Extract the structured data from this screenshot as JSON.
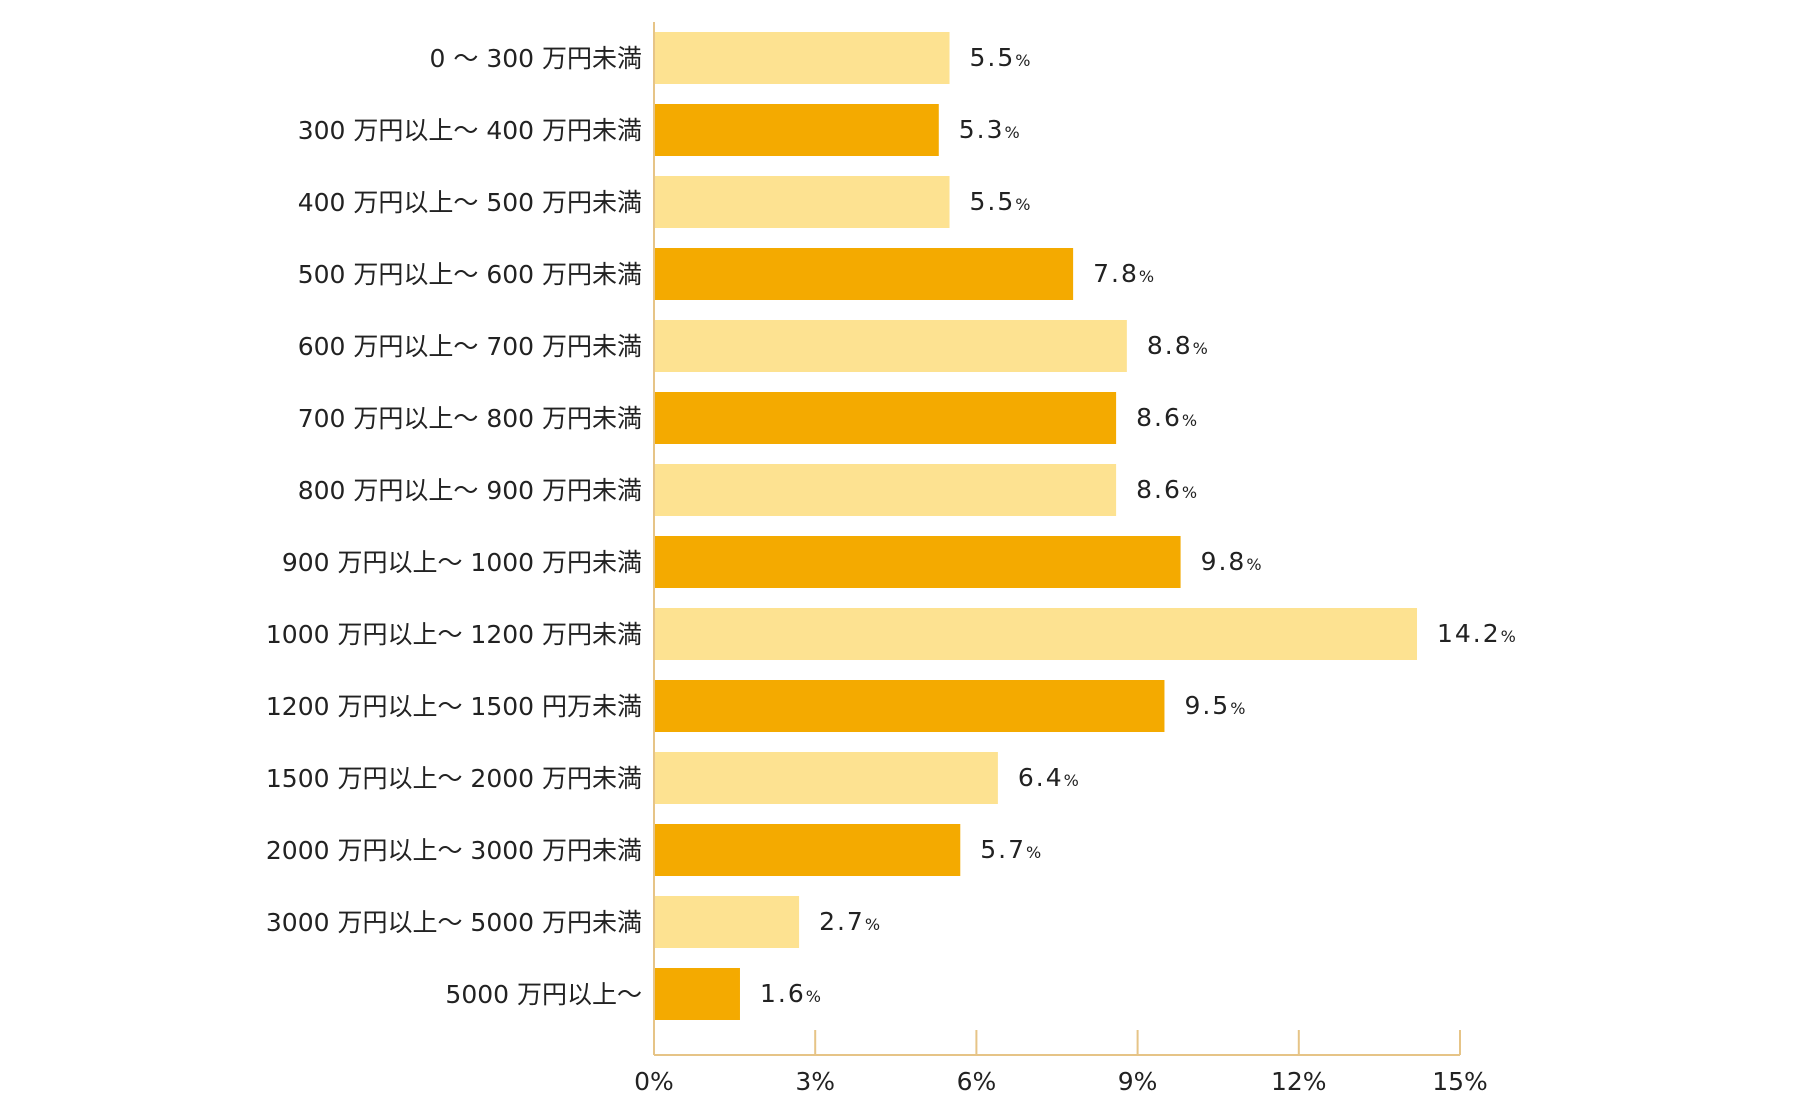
{
  "chart_data": {
    "type": "bar",
    "orientation": "horizontal",
    "categories": [
      "0 ～ 300 万円未満",
      "300 万円以上～ 400 万円未満",
      "400 万円以上～ 500 万円未満",
      "500 万円以上～ 600 万円未満",
      "600 万円以上～ 700 万円未満",
      "700 万円以上～ 800 万円未満",
      "800 万円以上～ 900 万円未満",
      "900 万円以上～ 1000 万円未満",
      "1000 万円以上～ 1200 万円未満",
      "1200 万円以上～ 1500 円万未満",
      "1500 万円以上～ 2000 万円未満",
      "2000 万円以上～ 3000 万円未満",
      "3000 万円以上～ 5000 万円未満",
      "5000 万円以上～"
    ],
    "values": [
      5.5,
      5.3,
      5.5,
      7.8,
      8.8,
      8.6,
      8.6,
      9.8,
      14.2,
      9.5,
      6.4,
      5.7,
      2.7,
      1.6
    ],
    "value_labels": [
      "5.5",
      "5.3",
      "5.5",
      "7.8",
      "8.8",
      "8.6",
      "8.6",
      "9.8",
      "14.2",
      "9.5",
      "6.4",
      "5.7",
      "2.7",
      "1.6"
    ],
    "value_unit": "%",
    "xlim": [
      0,
      15
    ],
    "ticks": [
      0,
      3,
      6,
      9,
      12,
      15
    ],
    "tick_labels": [
      "0%",
      "3%",
      "6%",
      "9%",
      "12%",
      "15%"
    ],
    "title": "",
    "xlabel": "",
    "ylabel": "",
    "grid": false,
    "colors": {
      "light": "#FDE291",
      "dark": "#F4AA00",
      "axis": "#E6C487"
    }
  }
}
